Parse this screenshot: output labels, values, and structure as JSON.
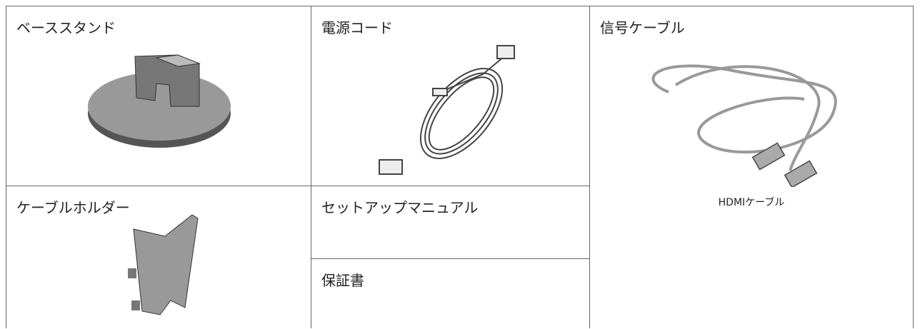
{
  "items": [
    {
      "title": "ベーススタンド"
    },
    {
      "title": "電源コード"
    },
    {
      "title": "信号ケーブル",
      "caption": "HDMIケーブル"
    },
    {
      "title": "ケーブルホルダー"
    },
    {
      "title": "セットアップマニュアル"
    },
    {
      "title": "保証書"
    }
  ]
}
